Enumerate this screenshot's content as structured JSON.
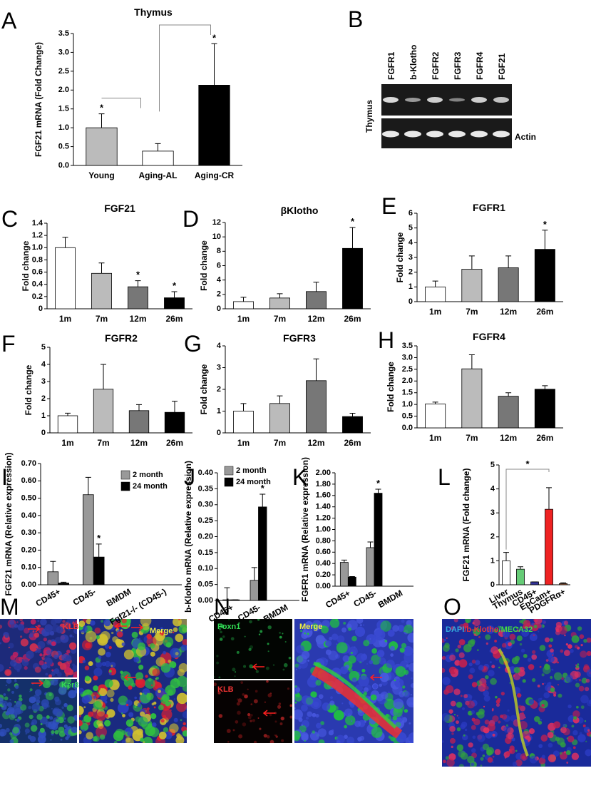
{
  "chart_data": [
    {
      "panel": "A",
      "type": "bar",
      "title": "Thymus",
      "ylabel": "FGF21 mRNA (Fold Change)",
      "categories": [
        "Young",
        "Aging-AL",
        "Aging-CR"
      ],
      "values": [
        1.0,
        0.38,
        2.13
      ],
      "errors": [
        0.37,
        0.2,
        1.1
      ],
      "colors": [
        "#bbbbbb",
        "#ffffff",
        "#000000"
      ],
      "annotations": [
        "*",
        null,
        "*"
      ],
      "ylim": [
        0,
        3.5
      ],
      "yticks": [
        {
          "value": 0,
          "label": "0.0"
        },
        0.5,
        {
          "value": 1,
          "label": "1.0"
        },
        1.5,
        {
          "value": 2,
          "label": "2.0"
        },
        2.5,
        {
          "value": 3,
          "label": "3.0"
        },
        3.5
      ]
    },
    {
      "panel": "C",
      "type": "bar",
      "title": "FGF21",
      "ylabel": "Fold change",
      "categories": [
        "1m",
        "7m",
        "12m",
        "26m"
      ],
      "values": [
        1.0,
        0.58,
        0.36,
        0.18
      ],
      "errors": [
        0.17,
        0.17,
        0.1,
        0.1
      ],
      "colors": [
        "#ffffff",
        "#bbbbbb",
        "#777777",
        "#000000"
      ],
      "annotations": [
        null,
        null,
        "*",
        "*"
      ],
      "ylim": [
        0,
        1.4
      ],
      "yticks": [
        0,
        0.2,
        0.4,
        0.6,
        0.8,
        {
          "value": 1,
          "label": "1.0"
        },
        1.2,
        1.4
      ]
    },
    {
      "panel": "D",
      "type": "bar",
      "title": "βKlotho",
      "ylabel": "Fold change",
      "categories": [
        "1m",
        "7m",
        "12m",
        "26m"
      ],
      "values": [
        1.0,
        1.5,
        2.4,
        8.4
      ],
      "errors": [
        0.6,
        0.6,
        1.3,
        2.9
      ],
      "colors": [
        "#ffffff",
        "#bbbbbb",
        "#777777",
        "#000000"
      ],
      "annotations": [
        null,
        null,
        null,
        "*"
      ],
      "ylim": [
        0,
        12
      ],
      "yticks": [
        0,
        2,
        4,
        6,
        8,
        10,
        12
      ]
    },
    {
      "panel": "E",
      "type": "bar",
      "title": "FGFR1",
      "ylabel": "Fold change",
      "categories": [
        "1m",
        "7m",
        "12m",
        "26m"
      ],
      "values": [
        1.0,
        2.2,
        2.3,
        3.55
      ],
      "errors": [
        0.4,
        0.9,
        0.8,
        1.3
      ],
      "colors": [
        "#ffffff",
        "#bbbbbb",
        "#777777",
        "#000000"
      ],
      "annotations": [
        null,
        null,
        null,
        "*"
      ],
      "ylim": [
        0,
        6
      ],
      "yticks": [
        0,
        1,
        2,
        3,
        4,
        5,
        6
      ]
    },
    {
      "panel": "F",
      "type": "bar",
      "title": "FGFR2",
      "ylabel": "Fold change",
      "categories": [
        "1m",
        "7m",
        "12m",
        "26m"
      ],
      "values": [
        1.0,
        2.55,
        1.3,
        1.2
      ],
      "errors": [
        0.15,
        1.45,
        0.35,
        0.65
      ],
      "colors": [
        "#ffffff",
        "#bbbbbb",
        "#777777",
        "#000000"
      ],
      "ylim": [
        0,
        5
      ],
      "yticks": [
        0,
        1,
        2,
        3,
        4,
        5
      ]
    },
    {
      "panel": "G",
      "type": "bar",
      "title": "FGFR3",
      "ylabel": "Fold change",
      "categories": [
        "1m",
        "7m",
        "12m",
        "26m"
      ],
      "values": [
        1.0,
        1.35,
        2.4,
        0.75
      ],
      "errors": [
        0.35,
        0.35,
        1.0,
        0.15
      ],
      "colors": [
        "#ffffff",
        "#bbbbbb",
        "#777777",
        "#000000"
      ],
      "ylim": [
        0,
        4
      ],
      "yticks": [
        0,
        1,
        2,
        3,
        4
      ]
    },
    {
      "panel": "H",
      "type": "bar",
      "title": "FGFR4",
      "ylabel": "Fold change",
      "categories": [
        "1m",
        "7m",
        "12m",
        "26m"
      ],
      "values": [
        1.02,
        2.52,
        1.35,
        1.65
      ],
      "errors": [
        0.08,
        0.6,
        0.15,
        0.15
      ],
      "colors": [
        "#ffffff",
        "#bbbbbb",
        "#777777",
        "#000000"
      ],
      "ylim": [
        0,
        3.5
      ],
      "yticks": [
        {
          "value": 0,
          "label": "0.0"
        },
        0.5,
        {
          "value": 1,
          "label": "1.0"
        },
        1.5,
        {
          "value": 2,
          "label": "2.0"
        },
        2.5,
        {
          "value": 3,
          "label": "3.0"
        },
        3.5
      ]
    },
    {
      "panel": "I",
      "type": "bar",
      "ylabel": "FGF21 mRNA (Relative expression)",
      "categories": [
        "CD45+",
        "CD45-",
        "BMDM",
        "Fgf21-/- (CD45-)"
      ],
      "series": [
        {
          "name": "2 month",
          "color": "#999999",
          "values": [
            0.075,
            0.52,
            0.0,
            0.0
          ],
          "errors": [
            0.06,
            0.1,
            0.0,
            0.0
          ]
        },
        {
          "name": "24 month",
          "color": "#000000",
          "values": [
            0.01,
            0.16,
            0.0,
            0.0
          ],
          "errors": [
            0.005,
            0.075,
            0.0,
            0.0
          ],
          "annotations": [
            null,
            "*",
            null,
            null
          ]
        }
      ],
      "ylim": [
        0,
        0.7
      ],
      "yticks": [
        {
          "value": 0,
          "label": "0.00"
        },
        {
          "value": 0.1,
          "label": "0.10"
        },
        {
          "value": 0.2,
          "label": "0.20"
        },
        {
          "value": 0.3,
          "label": "0.30"
        },
        {
          "value": 0.4,
          "label": "0.40"
        },
        {
          "value": 0.5,
          "label": "0.50"
        },
        {
          "value": 0.6,
          "label": "0.60"
        },
        {
          "value": 0.7,
          "label": "0.70"
        }
      ]
    },
    {
      "panel": "J",
      "type": "bar",
      "ylabel": "b-Klotho mRNA (Relative expression)",
      "categories": [
        "CD45+",
        "CD45-",
        "BMDM"
      ],
      "series": [
        {
          "name": "2 month",
          "color": "#999999",
          "values": [
            0.002,
            0.063,
            0.0
          ],
          "errors": [
            0.038,
            0.04,
            0.0
          ]
        },
        {
          "name": "24 month",
          "color": "#000000",
          "values": [
            0.002,
            0.293,
            0.0
          ],
          "errors": [
            0.0,
            0.04,
            0.0
          ],
          "annotations": [
            null,
            "*",
            null
          ]
        }
      ],
      "ylim": [
        0,
        0.4
      ],
      "yticks": [
        {
          "value": 0,
          "label": "0.00"
        },
        {
          "value": 0.05,
          "label": "0.05"
        },
        {
          "value": 0.1,
          "label": "0.10"
        },
        {
          "value": 0.15,
          "label": "0.15"
        },
        {
          "value": 0.2,
          "label": "0.20"
        },
        {
          "value": 0.25,
          "label": "0.25"
        },
        {
          "value": 0.3,
          "label": "0.30"
        },
        {
          "value": 0.35,
          "label": "0.35"
        },
        {
          "value": 0.4,
          "label": "0.40"
        }
      ]
    },
    {
      "panel": "K",
      "type": "bar",
      "ylabel": "FGFR1 mRNA (Relative expression)",
      "categories": [
        "CD45+",
        "CD45-",
        "BMDM"
      ],
      "series": [
        {
          "color": "#999999",
          "values": [
            0.42,
            0.68,
            0.0
          ],
          "errors": [
            0.04,
            0.1,
            0.0
          ]
        },
        {
          "color": "#000000",
          "values": [
            0.16,
            1.64,
            0.0
          ],
          "errors": [
            0.01,
            0.07,
            0.0
          ],
          "annotations": [
            null,
            "*",
            null
          ]
        }
      ],
      "ylim": [
        0,
        2
      ],
      "yticks": [
        {
          "value": 0,
          "label": "0.00"
        },
        {
          "value": 0.2,
          "label": "0.20"
        },
        {
          "value": 0.4,
          "label": "0.40"
        },
        {
          "value": 0.6,
          "label": "0.60"
        },
        {
          "value": 0.8,
          "label": "0.80"
        },
        {
          "value": 1,
          "label": "1.00"
        },
        {
          "value": 1.2,
          "label": "1.20"
        },
        {
          "value": 1.4,
          "label": "1.40"
        },
        {
          "value": 1.6,
          "label": "1.60"
        },
        {
          "value": 1.8,
          "label": "1.80"
        },
        {
          "value": 2,
          "label": "2.00"
        }
      ]
    },
    {
      "panel": "L",
      "type": "bar",
      "ylabel": "FGF21 mRNA (Fold change)",
      "categories": [
        "Liver",
        "Thymus",
        "CD45+",
        "EpCam+",
        "PDGFRα+"
      ],
      "values": [
        1.0,
        0.65,
        0.12,
        3.15,
        0.05
      ],
      "errors": [
        0.35,
        0.1,
        0.0,
        0.9,
        0.03
      ],
      "colors": [
        "#ffffff",
        "#66cc77",
        "#333399",
        "#ee2222",
        "#aa6644"
      ],
      "significance_label": "*",
      "ylim": [
        0,
        5
      ],
      "yticks": [
        0,
        1,
        2,
        3,
        4,
        5
      ]
    }
  ],
  "images": {
    "B": {
      "panel": "B",
      "lanes": [
        "FGFR1",
        "b-Klotho",
        "FGFR2",
        "FGFR3",
        "FGFR4",
        "FGF21"
      ],
      "tissue": "Thymus",
      "control": "Actin"
    },
    "M": {
      "panel": "M",
      "labels": [
        "KLB",
        "Ker8",
        "Merge"
      ]
    },
    "N": {
      "panel": "N",
      "labels": [
        "Foxn1",
        "KLB",
        "Merge"
      ]
    },
    "O": {
      "panel": "O",
      "labels": [
        "DAPI",
        "/b-Klotho",
        "/MECA32"
      ]
    }
  }
}
